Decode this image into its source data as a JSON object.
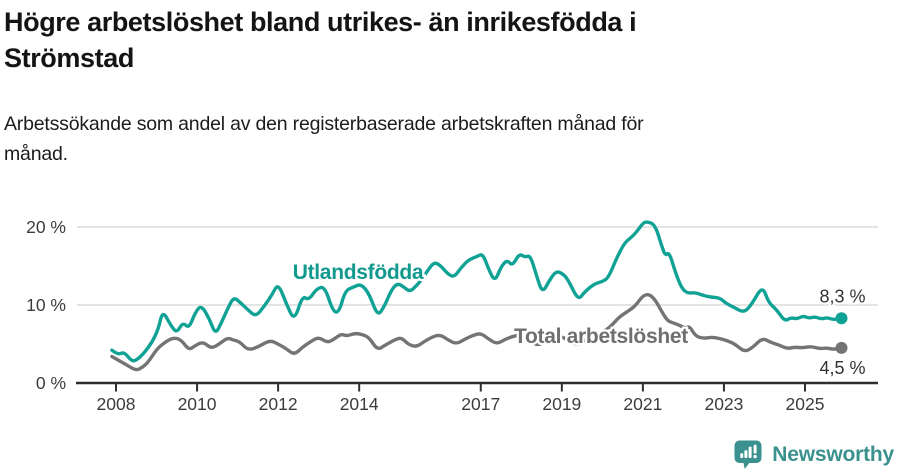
{
  "header": {
    "title_lines": [
      "Högre arbetslöshet bland utrikes- än inrikesfödda i",
      "Strömstad"
    ],
    "subtitle_lines": [
      "Arbetssökande som andel av den registerbaserade arbetskraften månad för",
      "månad."
    ]
  },
  "chart_data": {
    "type": "line",
    "title": "Högre arbetslöshet bland utrikes- än inrikesfödda i Strömstad",
    "subtitle": "Arbetssökande som andel av den registerbaserade arbetskraften månad för månad.",
    "unit": "%",
    "grid": "horizontal",
    "x_axis": {
      "range": [
        2007.8,
        2026.35
      ],
      "ticks": [
        {
          "year": 2008,
          "label": "2008"
        },
        {
          "year": 2010,
          "label": "2010"
        },
        {
          "year": 2012,
          "label": "2012"
        },
        {
          "year": 2014,
          "label": "2014"
        },
        {
          "year": 2017,
          "label": "2017"
        },
        {
          "year": 2019,
          "label": "2019"
        },
        {
          "year": 2021,
          "label": "2021"
        },
        {
          "year": 2023,
          "label": "2023"
        },
        {
          "year": 2025,
          "label": "2025"
        }
      ]
    },
    "y_axis": {
      "range": [
        0,
        22
      ],
      "ticks": [
        {
          "value": 0,
          "label": "0 %"
        },
        {
          "value": 10,
          "label": "10 %"
        },
        {
          "value": 20,
          "label": "20 %"
        }
      ]
    },
    "colors": {
      "gridline": "#dcdcdc",
      "axis": "#2e2e2e",
      "tick_text": "#3c3c3c",
      "value_label_text": "#333333"
    },
    "series": [
      {
        "id": "total",
        "name": "Total arbetslöshet",
        "color": "#747474",
        "label_color": "#6f6f6f",
        "label_pos": {
          "x": 601,
          "y": 153
        },
        "end_value_label": "4,5 %",
        "points": [
          [
            2007.9,
            3.4
          ],
          [
            2008.1,
            2.8
          ],
          [
            2008.3,
            2.2
          ],
          [
            2008.5,
            1.6
          ],
          [
            2008.65,
            2.0
          ],
          [
            2008.8,
            2.7
          ],
          [
            2009.0,
            4.3
          ],
          [
            2009.2,
            5.2
          ],
          [
            2009.4,
            5.8
          ],
          [
            2009.6,
            5.6
          ],
          [
            2009.8,
            4.2
          ],
          [
            2009.95,
            4.8
          ],
          [
            2010.15,
            5.3
          ],
          [
            2010.35,
            4.4
          ],
          [
            2010.55,
            5.0
          ],
          [
            2010.75,
            5.8
          ],
          [
            2010.9,
            5.5
          ],
          [
            2011.05,
            5.3
          ],
          [
            2011.25,
            4.2
          ],
          [
            2011.5,
            4.6
          ],
          [
            2011.8,
            5.5
          ],
          [
            2012.0,
            5.0
          ],
          [
            2012.2,
            4.4
          ],
          [
            2012.4,
            3.6
          ],
          [
            2012.6,
            4.6
          ],
          [
            2012.8,
            5.3
          ],
          [
            2013.0,
            5.9
          ],
          [
            2013.2,
            5.2
          ],
          [
            2013.35,
            5.5
          ],
          [
            2013.55,
            6.3
          ],
          [
            2013.7,
            6.0
          ],
          [
            2013.9,
            6.4
          ],
          [
            2014.1,
            6.2
          ],
          [
            2014.25,
            5.8
          ],
          [
            2014.45,
            4.2
          ],
          [
            2014.65,
            4.9
          ],
          [
            2014.9,
            5.6
          ],
          [
            2015.05,
            5.8
          ],
          [
            2015.2,
            5.0
          ],
          [
            2015.4,
            4.6
          ],
          [
            2015.6,
            5.3
          ],
          [
            2015.8,
            5.9
          ],
          [
            2016.0,
            6.2
          ],
          [
            2016.2,
            5.5
          ],
          [
            2016.4,
            5.0
          ],
          [
            2016.6,
            5.6
          ],
          [
            2016.8,
            6.1
          ],
          [
            2017.0,
            6.4
          ],
          [
            2017.2,
            5.6
          ],
          [
            2017.4,
            5.0
          ],
          [
            2017.6,
            5.6
          ],
          [
            2017.8,
            6.0
          ],
          [
            2018.0,
            6.2
          ],
          [
            2018.2,
            5.5
          ],
          [
            2018.4,
            4.8
          ],
          [
            2018.6,
            5.3
          ],
          [
            2018.8,
            5.8
          ],
          [
            2019.0,
            6.0
          ],
          [
            2019.2,
            5.3
          ],
          [
            2019.4,
            4.9
          ],
          [
            2019.6,
            5.5
          ],
          [
            2019.8,
            6.1
          ],
          [
            2020.0,
            6.5
          ],
          [
            2020.2,
            7.2
          ],
          [
            2020.4,
            8.4
          ],
          [
            2020.6,
            9.1
          ],
          [
            2020.8,
            9.8
          ],
          [
            2021.0,
            11.2
          ],
          [
            2021.15,
            11.4
          ],
          [
            2021.3,
            10.7
          ],
          [
            2021.45,
            9.3
          ],
          [
            2021.6,
            8.0
          ],
          [
            2021.75,
            7.7
          ],
          [
            2021.9,
            7.4
          ],
          [
            2022.05,
            7.0
          ],
          [
            2022.15,
            7.3
          ],
          [
            2022.3,
            6.0
          ],
          [
            2022.5,
            5.7
          ],
          [
            2022.7,
            5.9
          ],
          [
            2022.9,
            5.7
          ],
          [
            2023.1,
            5.4
          ],
          [
            2023.3,
            4.9
          ],
          [
            2023.5,
            4.0
          ],
          [
            2023.7,
            4.5
          ],
          [
            2023.95,
            5.8
          ],
          [
            2024.15,
            5.2
          ],
          [
            2024.35,
            4.9
          ],
          [
            2024.55,
            4.4
          ],
          [
            2024.75,
            4.6
          ],
          [
            2024.95,
            4.5
          ],
          [
            2025.15,
            4.7
          ],
          [
            2025.35,
            4.4
          ],
          [
            2025.55,
            4.5
          ],
          [
            2025.7,
            4.3
          ],
          [
            2025.9,
            4.5
          ]
        ]
      },
      {
        "id": "utlandsfodda",
        "name": "Utlandsfödda",
        "color": "#11A296",
        "label_color": "#12998E",
        "label_pos": {
          "x": 358,
          "y": 89
        },
        "end_value_label": "8,3 %",
        "points": [
          [
            2007.9,
            4.2
          ],
          [
            2008.05,
            3.6
          ],
          [
            2008.2,
            4.0
          ],
          [
            2008.4,
            2.7
          ],
          [
            2008.55,
            3.1
          ],
          [
            2008.7,
            3.9
          ],
          [
            2008.9,
            5.3
          ],
          [
            2009.05,
            7.0
          ],
          [
            2009.15,
            9.3
          ],
          [
            2009.35,
            7.4
          ],
          [
            2009.5,
            6.4
          ],
          [
            2009.65,
            7.8
          ],
          [
            2009.8,
            7.0
          ],
          [
            2009.95,
            9.0
          ],
          [
            2010.1,
            10.0
          ],
          [
            2010.3,
            8.3
          ],
          [
            2010.45,
            6.2
          ],
          [
            2010.6,
            7.7
          ],
          [
            2010.75,
            9.5
          ],
          [
            2010.9,
            11.0
          ],
          [
            2011.05,
            10.4
          ],
          [
            2011.25,
            9.4
          ],
          [
            2011.45,
            8.5
          ],
          [
            2011.65,
            9.8
          ],
          [
            2011.85,
            11.3
          ],
          [
            2012.0,
            12.8
          ],
          [
            2012.2,
            10.2
          ],
          [
            2012.4,
            7.9
          ],
          [
            2012.6,
            11.2
          ],
          [
            2012.75,
            10.6
          ],
          [
            2012.95,
            12.1
          ],
          [
            2013.15,
            12.4
          ],
          [
            2013.35,
            9.2
          ],
          [
            2013.5,
            9.0
          ],
          [
            2013.65,
            11.8
          ],
          [
            2013.85,
            12.3
          ],
          [
            2014.05,
            12.7
          ],
          [
            2014.25,
            11.4
          ],
          [
            2014.45,
            8.6
          ],
          [
            2014.6,
            9.6
          ],
          [
            2014.8,
            12.0
          ],
          [
            2014.95,
            12.8
          ],
          [
            2015.1,
            12.3
          ],
          [
            2015.25,
            11.7
          ],
          [
            2015.4,
            12.4
          ],
          [
            2015.55,
            13.3
          ],
          [
            2015.7,
            14.5
          ],
          [
            2015.85,
            15.5
          ],
          [
            2016.0,
            15.1
          ],
          [
            2016.2,
            13.9
          ],
          [
            2016.35,
            13.6
          ],
          [
            2016.5,
            14.7
          ],
          [
            2016.7,
            15.8
          ],
          [
            2016.9,
            16.2
          ],
          [
            2017.05,
            16.6
          ],
          [
            2017.2,
            14.5
          ],
          [
            2017.35,
            13.0
          ],
          [
            2017.5,
            14.9
          ],
          [
            2017.65,
            15.8
          ],
          [
            2017.78,
            15.0
          ],
          [
            2017.95,
            16.6
          ],
          [
            2018.1,
            16.1
          ],
          [
            2018.22,
            16.4
          ],
          [
            2018.38,
            13.7
          ],
          [
            2018.52,
            11.5
          ],
          [
            2018.7,
            13.2
          ],
          [
            2018.85,
            14.3
          ],
          [
            2019.0,
            14.1
          ],
          [
            2019.15,
            13.3
          ],
          [
            2019.4,
            10.6
          ],
          [
            2019.55,
            11.6
          ],
          [
            2019.7,
            12.3
          ],
          [
            2019.85,
            12.8
          ],
          [
            2020.0,
            13.0
          ],
          [
            2020.15,
            13.5
          ],
          [
            2020.35,
            16.0
          ],
          [
            2020.55,
            18.0
          ],
          [
            2020.7,
            18.6
          ],
          [
            2020.85,
            19.4
          ],
          [
            2021.0,
            20.5
          ],
          [
            2021.1,
            20.7
          ],
          [
            2021.3,
            20.3
          ],
          [
            2021.45,
            17.8
          ],
          [
            2021.55,
            16.3
          ],
          [
            2021.65,
            16.8
          ],
          [
            2021.8,
            14.2
          ],
          [
            2021.95,
            12.2
          ],
          [
            2022.1,
            11.5
          ],
          [
            2022.3,
            11.6
          ],
          [
            2022.5,
            11.2
          ],
          [
            2022.7,
            11.0
          ],
          [
            2022.9,
            10.9
          ],
          [
            2023.05,
            10.2
          ],
          [
            2023.25,
            9.7
          ],
          [
            2023.5,
            9.0
          ],
          [
            2023.7,
            10.2
          ],
          [
            2023.95,
            12.5
          ],
          [
            2024.1,
            10.3
          ],
          [
            2024.3,
            9.4
          ],
          [
            2024.5,
            7.9
          ],
          [
            2024.65,
            8.4
          ],
          [
            2024.8,
            8.2
          ],
          [
            2024.95,
            8.6
          ],
          [
            2025.1,
            8.3
          ],
          [
            2025.25,
            8.5
          ],
          [
            2025.4,
            8.2
          ],
          [
            2025.55,
            8.4
          ],
          [
            2025.7,
            8.1
          ],
          [
            2025.9,
            8.3
          ]
        ]
      }
    ]
  },
  "footer": {
    "brand_text": "Newsworthy",
    "brand_color": "#3A918E",
    "icon": "newsworthy-bar-chart-speech-bubble-icon"
  }
}
